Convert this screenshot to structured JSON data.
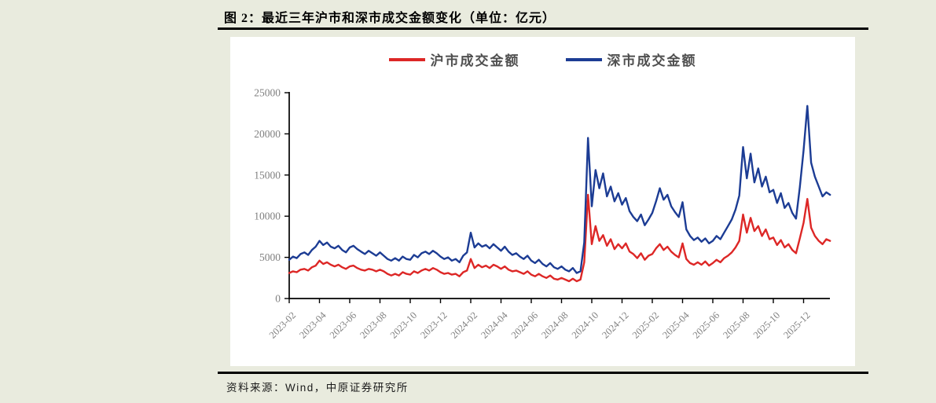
{
  "page": {
    "title": "图 2：最近三年沪市和深市成交金额变化（单位：亿元）",
    "source_note": "资料来源：Wind，中原证券研究所"
  },
  "colors": {
    "background": "#e9ebde",
    "panel": "#ffffff",
    "axis": "#000000",
    "tick_label": "#7f7f7f",
    "shanghai_red": "#dd2726",
    "shenzhen_blue": "#1c3c94"
  },
  "chart_data": {
    "type": "line",
    "title": "最近三年沪市和深市成交金额变化",
    "unit": "亿元",
    "xlabel": "",
    "ylabel": "",
    "grid": false,
    "legend_position": "top-center",
    "ylim": [
      0,
      25000
    ],
    "y_ticks": [
      0,
      5000,
      10000,
      15000,
      20000,
      25000
    ],
    "x_tick_labels": [
      "2023-02",
      "2023-04",
      "2023-06",
      "2023-08",
      "2023-10",
      "2023-12",
      "2024-02",
      "2024-04",
      "2024-06",
      "2024-08",
      "2024-10",
      "2024-12",
      "2025-02",
      "2025-04",
      "2025-06",
      "2025-08",
      "2025-10",
      "2025-12"
    ],
    "x_tick_interval_months": 2,
    "x_step_months": 0.25,
    "series": [
      {
        "name": "沪市成交金额",
        "color": "#dd2726",
        "values": [
          3100,
          3300,
          3200,
          3500,
          3600,
          3400,
          3800,
          4000,
          4600,
          4200,
          4400,
          4100,
          3900,
          4100,
          3800,
          3600,
          3900,
          4000,
          3700,
          3500,
          3400,
          3600,
          3500,
          3300,
          3500,
          3300,
          3000,
          2800,
          3000,
          2800,
          3200,
          3000,
          2900,
          3300,
          3100,
          3400,
          3600,
          3400,
          3700,
          3500,
          3200,
          3000,
          3100,
          2900,
          3000,
          2700,
          3200,
          3400,
          4800,
          3700,
          4100,
          3800,
          4000,
          3700,
          4100,
          3900,
          3600,
          3900,
          3500,
          3300,
          3400,
          3200,
          3000,
          3300,
          2900,
          2700,
          3000,
          2700,
          2500,
          2800,
          2400,
          2300,
          2500,
          2300,
          2100,
          2400,
          2100,
          2300,
          4400,
          12600,
          6600,
          8800,
          7000,
          7700,
          6400,
          7200,
          6000,
          6600,
          6100,
          6700,
          5700,
          5400,
          4900,
          5500,
          4700,
          5200,
          5400,
          6100,
          6600,
          5900,
          6300,
          5700,
          5300,
          5000,
          6700,
          4800,
          4300,
          4100,
          4400,
          4100,
          4500,
          4000,
          4300,
          4700,
          4400,
          4900,
          5200,
          5600,
          6200,
          7000,
          10200,
          8000,
          9800,
          8200,
          8800,
          7600,
          8400,
          7200,
          7400,
          6500,
          7100,
          6200,
          6600,
          5900,
          5500,
          7300,
          9200,
          12100,
          8600,
          7600,
          7000,
          6600,
          7200,
          7000
        ]
      },
      {
        "name": "深市成交金额",
        "color": "#1c3c94",
        "values": [
          4700,
          5100,
          4900,
          5400,
          5600,
          5300,
          5900,
          6300,
          7000,
          6500,
          6800,
          6300,
          6100,
          6400,
          5900,
          5600,
          6200,
          6400,
          6000,
          5700,
          5400,
          5800,
          5500,
          5200,
          5600,
          5200,
          4800,
          4600,
          4900,
          4600,
          5100,
          4800,
          4700,
          5300,
          5000,
          5500,
          5700,
          5400,
          5800,
          5500,
          5100,
          4800,
          5000,
          4600,
          4800,
          4400,
          5200,
          5600,
          8000,
          6200,
          6700,
          6300,
          6500,
          6100,
          6600,
          6200,
          5800,
          6300,
          5700,
          5300,
          5500,
          5100,
          4800,
          5200,
          4600,
          4300,
          4700,
          4200,
          3900,
          4300,
          3800,
          3600,
          3900,
          3500,
          3300,
          3700,
          3100,
          3300,
          6800,
          19500,
          11200,
          15600,
          13400,
          15200,
          12400,
          13600,
          11800,
          12800,
          11400,
          12200,
          10600,
          9900,
          9400,
          10200,
          8900,
          9600,
          10400,
          11800,
          13400,
          12000,
          12600,
          11200,
          10500,
          9900,
          11700,
          8400,
          7600,
          7100,
          7400,
          6900,
          7300,
          6700,
          7000,
          7600,
          7200,
          8000,
          8800,
          9600,
          10800,
          12500,
          18400,
          14600,
          17600,
          14100,
          15800,
          13600,
          14800,
          12900,
          13200,
          11600,
          12800,
          11000,
          11600,
          10400,
          9700,
          13500,
          18000,
          23400,
          16500,
          14800,
          13600,
          12400,
          12900,
          12600
        ]
      }
    ]
  }
}
